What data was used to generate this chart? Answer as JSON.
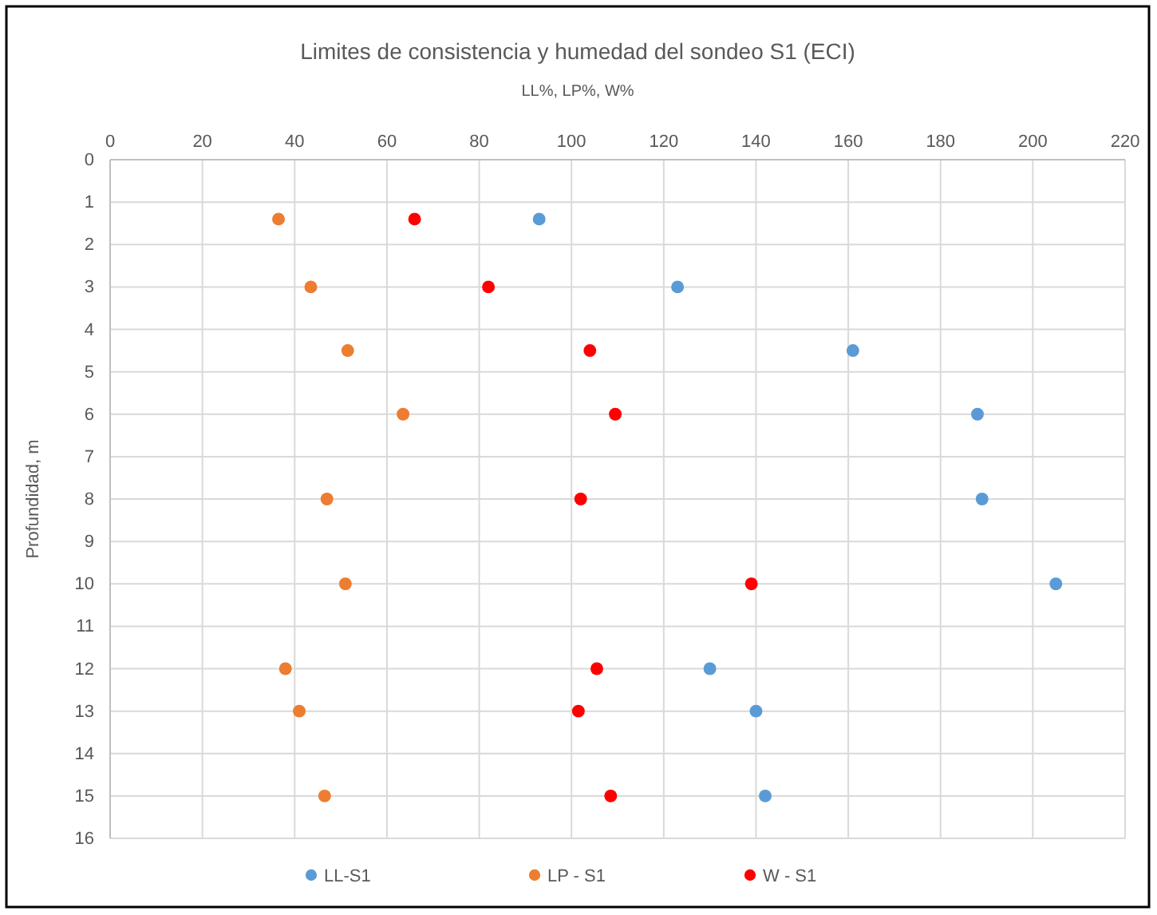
{
  "chart_data": {
    "type": "scatter",
    "title": "Limites de consistencia y humedad  del sondeo S1 (ECI)",
    "xlabel": "LL%, LP%, W%",
    "ylabel": "Profundidad, m",
    "xlim": [
      0,
      220
    ],
    "xticks": [
      0,
      20,
      40,
      60,
      80,
      100,
      120,
      140,
      160,
      180,
      200,
      220
    ],
    "ylim": [
      16,
      0
    ],
    "yticks": [
      0,
      1,
      2,
      3,
      4,
      5,
      6,
      7,
      8,
      9,
      10,
      11,
      12,
      13,
      14,
      15,
      16
    ],
    "grid": true,
    "legend": "bottom",
    "marker": "circle",
    "series": [
      {
        "name": "LL-S1",
        "color": "#5b9bd5",
        "x": [
          93,
          123,
          161,
          188,
          189,
          205,
          130,
          140,
          142
        ],
        "values": [
          1.4,
          3,
          4.5,
          6,
          8,
          10,
          12,
          13,
          15
        ]
      },
      {
        "name": "LP - S1",
        "color": "#ed7d31",
        "x": [
          36.5,
          43.5,
          51.5,
          63.5,
          47,
          51,
          38,
          41,
          46.5
        ],
        "values": [
          1.4,
          3,
          4.5,
          6,
          8,
          10,
          12,
          13,
          15
        ]
      },
      {
        "name": "W - S1",
        "color": "#ff0000",
        "x": [
          66,
          82,
          104,
          109.5,
          102,
          139,
          105.5,
          101.5,
          108.5
        ],
        "values": [
          1.4,
          3,
          4.5,
          6,
          8,
          10,
          12,
          13,
          15
        ]
      }
    ]
  }
}
